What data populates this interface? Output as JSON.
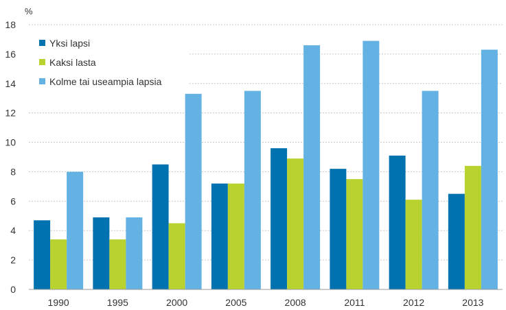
{
  "chart_data": {
    "type": "bar",
    "title": "",
    "unit_label": "%",
    "xlabel": "",
    "ylabel": "%",
    "categories": [
      "1990",
      "1995",
      "2000",
      "2005",
      "2008",
      "2011",
      "2012",
      "2013"
    ],
    "series": [
      {
        "name": "Yksi lapsi",
        "color": "#0072b0",
        "values": [
          4.7,
          4.9,
          8.5,
          7.2,
          9.6,
          8.2,
          9.1,
          6.5
        ]
      },
      {
        "name": "Kaksi lasta",
        "color": "#b9d230",
        "values": [
          3.4,
          3.4,
          4.5,
          7.2,
          8.9,
          7.5,
          6.1,
          8.4
        ]
      },
      {
        "name": "Kolme tai useampia lapsia",
        "color": "#63b2e3",
        "values": [
          8.0,
          4.9,
          13.3,
          13.5,
          16.6,
          16.9,
          13.5,
          16.3
        ]
      }
    ],
    "ylim": [
      0,
      18
    ],
    "yticks": [
      0,
      2,
      4,
      6,
      8,
      10,
      12,
      14,
      16,
      18
    ],
    "grid": true,
    "legend_position": "top-left"
  }
}
